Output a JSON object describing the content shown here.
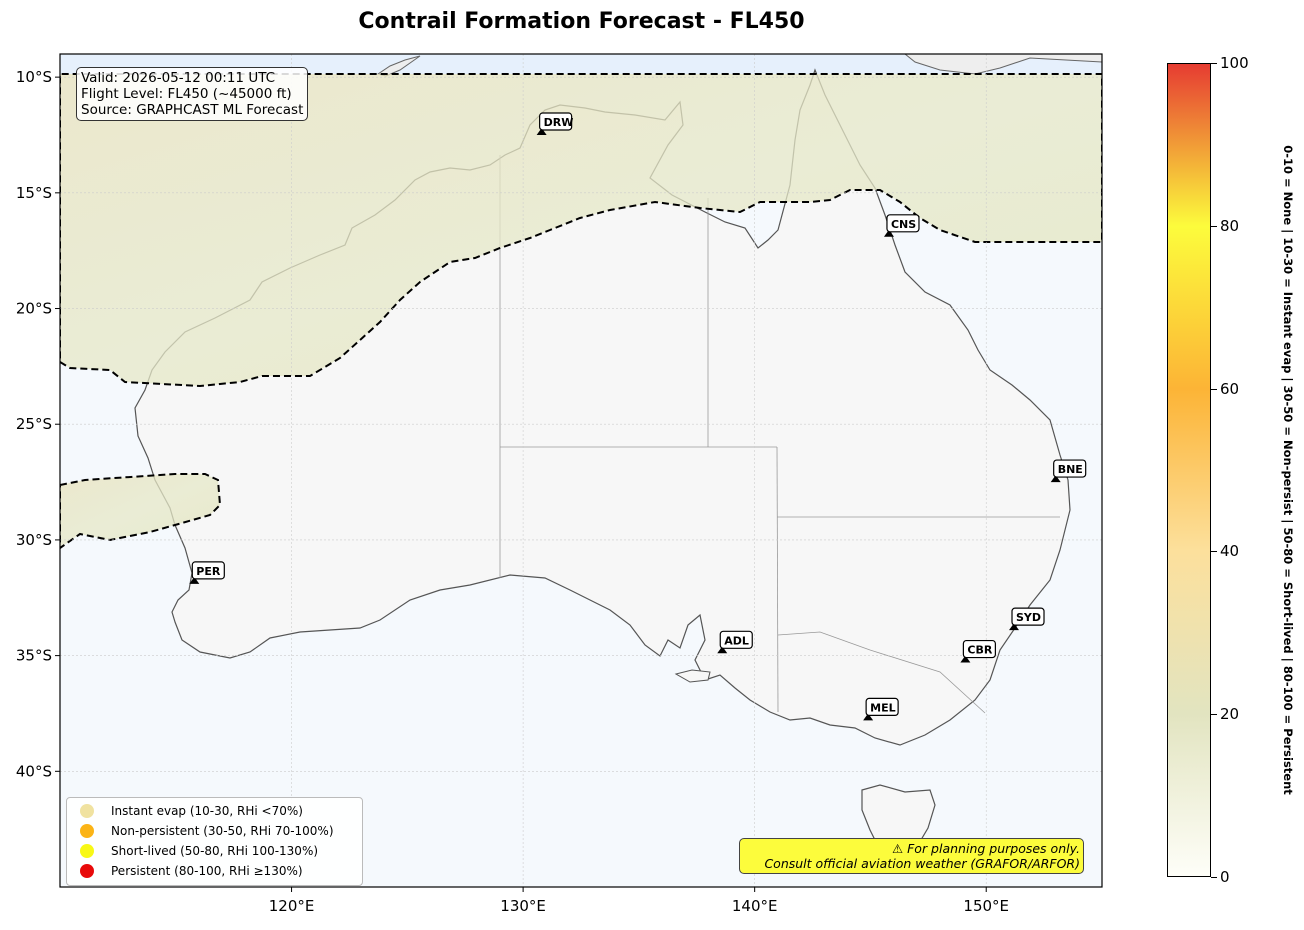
{
  "title": "Contrail Formation Forecast - FL450",
  "info_box": {
    "valid": "Valid: 2026-05-12 00:11 UTC",
    "flight_level": "Flight Level: FL450 (~45000 ft)",
    "source": "Source: GRAPHCAST ML Forecast"
  },
  "map": {
    "lon_range": [
      110,
      155
    ],
    "lat_range": [
      -45,
      -9
    ],
    "lat_ticks": [
      {
        "value": -10,
        "label": "10°S"
      },
      {
        "value": -15,
        "label": "15°S"
      },
      {
        "value": -20,
        "label": "20°S"
      },
      {
        "value": -25,
        "label": "25°S"
      },
      {
        "value": -30,
        "label": "30°S"
      },
      {
        "value": -35,
        "label": "35°S"
      },
      {
        "value": -40,
        "label": "40°S"
      }
    ],
    "lon_ticks": [
      {
        "value": 120,
        "label": "120°E"
      },
      {
        "value": 130,
        "label": "130°E"
      },
      {
        "value": 140,
        "label": "140°E"
      },
      {
        "value": 150,
        "label": "150°E"
      }
    ],
    "cities": [
      {
        "code": "DRW",
        "lon": 130.8,
        "lat": -12.5
      },
      {
        "code": "CNS",
        "lon": 145.8,
        "lat": -16.9
      },
      {
        "code": "BNE",
        "lon": 153.0,
        "lat": -27.5
      },
      {
        "code": "PER",
        "lon": 115.8,
        "lat": -31.9
      },
      {
        "code": "ADL",
        "lon": 138.6,
        "lat": -34.9
      },
      {
        "code": "SYD",
        "lon": 151.2,
        "lat": -33.9
      },
      {
        "code": "CBR",
        "lon": 149.1,
        "lat": -35.3
      },
      {
        "code": "MEL",
        "lon": 144.9,
        "lat": -37.8
      }
    ],
    "colors": {
      "ocean": "#f5f9fd",
      "land": "#f7f7f7",
      "north_ocean": "#e6f0fc",
      "instant_evap_zone": "#e6e5c0"
    }
  },
  "legend": {
    "items": [
      {
        "label": "Instant evap (10-30, RHi <70%)",
        "color": "#f0e2a0"
      },
      {
        "label": "Non-persistent (30-50, RHi 70-100%)",
        "color": "#fbb416"
      },
      {
        "label": "Short-lived (50-80, RHi 100-130%)",
        "color": "#f8f816"
      },
      {
        "label": "Persistent (80-100, RHi ≥130%)",
        "color": "#e80a0a"
      }
    ]
  },
  "disclaimer": {
    "line1": "⚠ For planning purposes only.",
    "line2": "Consult official aviation weather (GRAFOR/ARFOR)"
  },
  "colorbar": {
    "min": 0,
    "max": 100,
    "ticks": [
      "0",
      "20",
      "40",
      "60",
      "80",
      "100"
    ],
    "label": "0-10 = None  |  10-30 = Instant evap  |  30-50 = Non-persist  |  50-80 = Short-lived  |  80-100 = Persistent",
    "colors": [
      "#fefef8",
      "#e2e4c0",
      "#fce09c",
      "#fcb436",
      "#fcfc3c",
      "#e63c32"
    ]
  }
}
